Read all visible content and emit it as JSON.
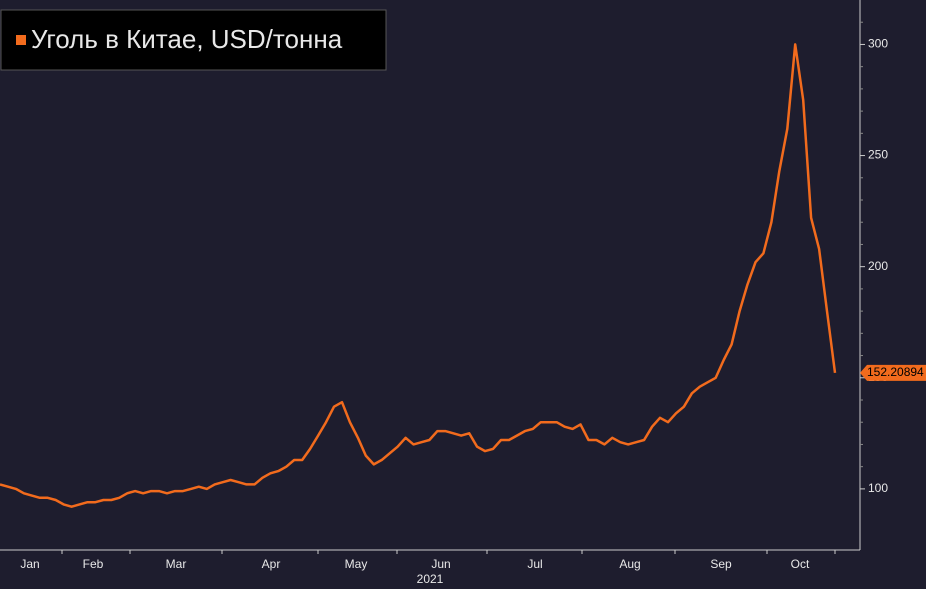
{
  "chart_data": {
    "type": "line",
    "title": "Уголь в Китае, USD/тонна",
    "x_labels": [
      "Jan",
      "Feb",
      "Mar",
      "Apr",
      "May",
      "Jun",
      "Jul",
      "Aug",
      "Sep",
      "Oct"
    ],
    "x_year": "2021",
    "series": [
      {
        "name": "Уголь в Китае, USD/тонна",
        "color": "#f26b1d",
        "values": [
          102,
          101,
          100,
          98,
          97,
          96,
          96,
          95,
          93,
          92,
          93,
          94,
          94,
          95,
          95,
          96,
          98,
          99,
          98,
          99,
          99,
          98,
          99,
          99,
          100,
          101,
          100,
          102,
          103,
          104,
          103,
          102,
          102,
          105,
          107,
          108,
          110,
          113,
          113,
          118,
          124,
          130,
          137,
          139,
          130,
          123,
          115,
          111,
          113,
          116,
          119,
          123,
          120,
          121,
          122,
          126,
          126,
          125,
          124,
          125,
          119,
          117,
          118,
          122,
          122,
          124,
          126,
          127,
          130,
          130,
          130,
          128,
          127,
          129,
          122,
          122,
          120,
          123,
          121,
          120,
          121,
          122,
          128,
          132,
          130,
          134,
          137,
          143,
          146,
          148,
          150,
          158,
          165,
          180,
          192,
          202,
          206,
          220,
          243,
          262,
          300,
          275,
          222,
          208,
          180,
          152.20894
        ]
      }
    ],
    "ylim": [
      72.5,
      320
    ],
    "yticks": [
      100,
      150,
      200,
      250,
      300
    ],
    "axis_side": "right"
  }
}
